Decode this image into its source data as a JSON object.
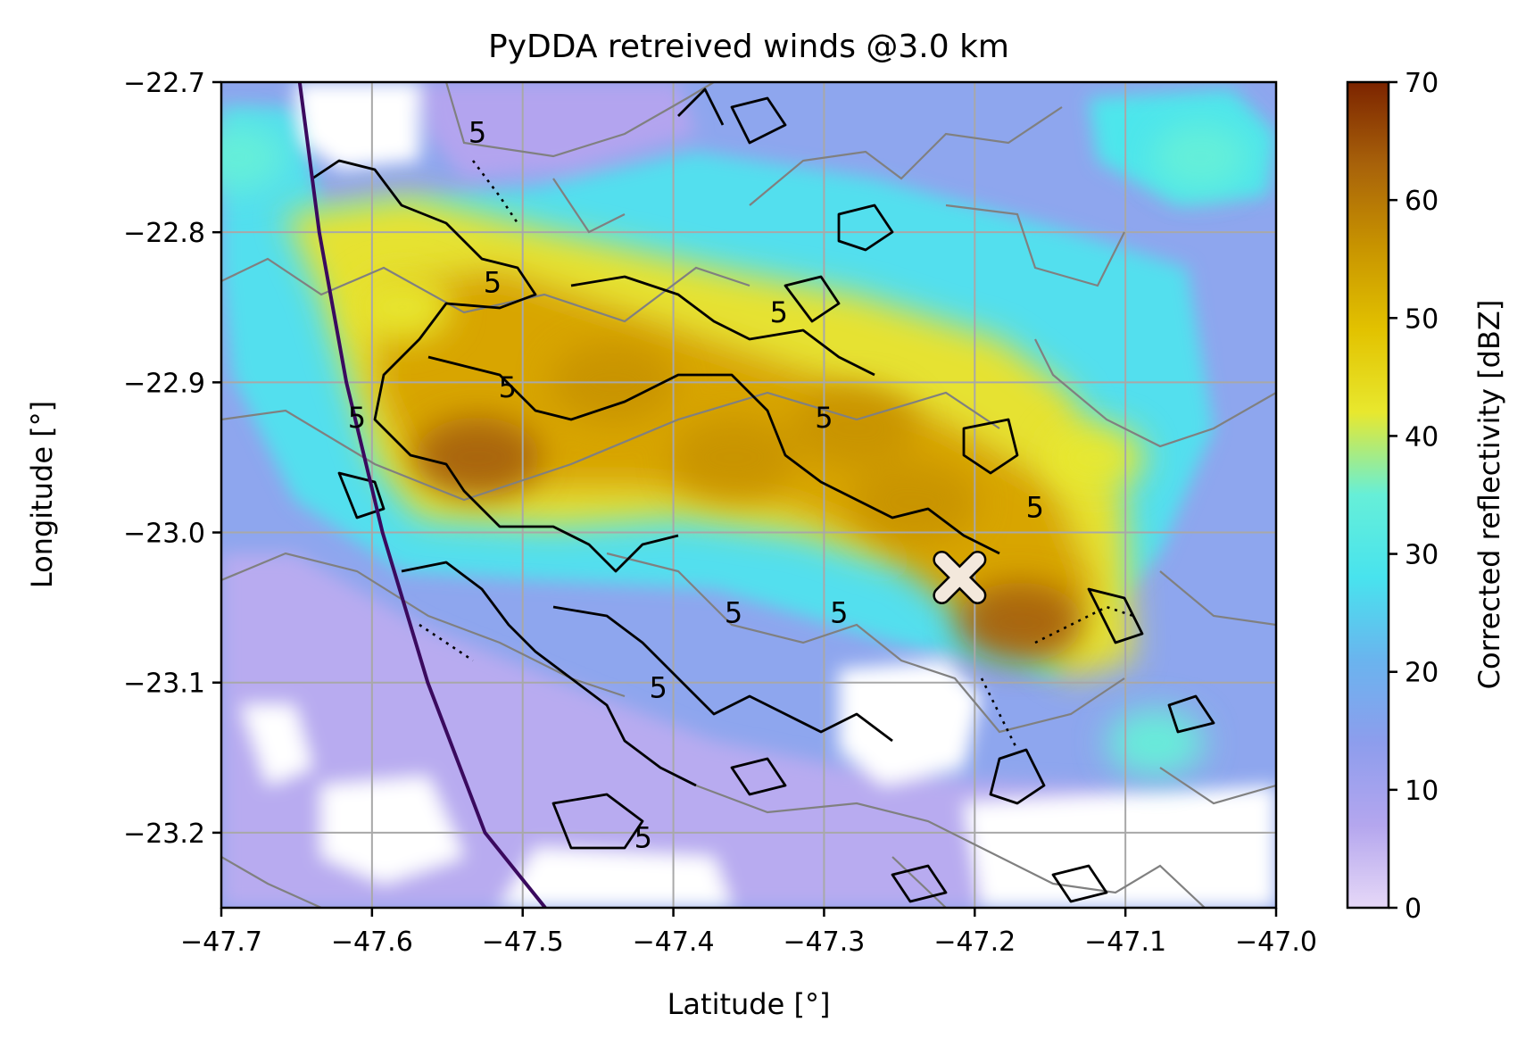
{
  "chart_data": {
    "type": "heatmap",
    "title": "PyDDA retreived winds @3.0 km",
    "xlabel": "Latitude [°]",
    "ylabel": "Longitude [°]",
    "xlim": [
      -47.7,
      -47.0
    ],
    "ylim": [
      -23.25,
      -22.7
    ],
    "xticks": [
      -47.7,
      -47.6,
      -47.5,
      -47.4,
      -47.3,
      -47.2,
      -47.1,
      -47.0
    ],
    "xtick_labels": [
      "−47.7",
      "−47.6",
      "−47.5",
      "−47.4",
      "−47.3",
      "−47.2",
      "−47.1",
      "−47.0"
    ],
    "yticks": [
      -22.7,
      -22.8,
      -22.9,
      -23.0,
      -23.1,
      -23.2
    ],
    "ytick_labels": [
      "−22.7",
      "−22.8",
      "−22.9",
      "−23.0",
      "−23.1",
      "−23.2"
    ],
    "grid": true,
    "colorbar": {
      "label": "Corrected reflectivity [dBZ]",
      "range": [
        0,
        70
      ],
      "ticks": [
        0,
        10,
        20,
        30,
        40,
        50,
        60,
        70
      ],
      "tick_labels": [
        "0",
        "10",
        "20",
        "30",
        "40",
        "50",
        "60",
        "70"
      ],
      "colors": [
        "#e6d8f7",
        "#b4a6ee",
        "#8d9ded",
        "#6ab4ee",
        "#48e3ee",
        "#66efd8",
        "#e8e82e",
        "#e2c200",
        "#c89400",
        "#a8620a",
        "#7c2400"
      ]
    },
    "reflectivity_cells": [
      {
        "lon": -47.28,
        "lat": -22.93,
        "dbz": 58
      },
      {
        "lon": -47.36,
        "lat": -22.95,
        "dbz": 55
      },
      {
        "lon": -47.44,
        "lat": -22.9,
        "dbz": 54
      },
      {
        "lon": -47.53,
        "lat": -22.95,
        "dbz": 60
      },
      {
        "lon": -47.17,
        "lat": -23.06,
        "dbz": 62
      },
      {
        "lon": -47.24,
        "lat": -22.98,
        "dbz": 54
      },
      {
        "lon": -47.58,
        "lat": -22.85,
        "dbz": 42
      },
      {
        "lon": -47.12,
        "lat": -22.95,
        "dbz": 44
      },
      {
        "lon": -47.08,
        "lat": -23.14,
        "dbz": 36
      },
      {
        "lon": -47.69,
        "lat": -22.75,
        "dbz": 34
      },
      {
        "lon": -47.05,
        "lat": -22.75,
        "dbz": 34
      }
    ],
    "contour_label": "5",
    "contour_label_positions": [
      {
        "lon": -47.53,
        "lat": -22.74
      },
      {
        "lon": -47.52,
        "lat": -22.84
      },
      {
        "lon": -47.33,
        "lat": -22.86
      },
      {
        "lon": -47.51,
        "lat": -22.91
      },
      {
        "lon": -47.61,
        "lat": -22.93
      },
      {
        "lon": -47.3,
        "lat": -22.93
      },
      {
        "lon": -47.16,
        "lat": -22.99
      },
      {
        "lon": -47.36,
        "lat": -23.06
      },
      {
        "lon": -47.29,
        "lat": -23.06
      },
      {
        "lon": -47.41,
        "lat": -23.11
      },
      {
        "lon": -47.42,
        "lat": -23.21
      }
    ],
    "radar_marker": {
      "symbol": "X",
      "lon": -47.21,
      "lat": -23.03,
      "color": "#f3e8dc"
    },
    "range_ring_color": "#3a0a5e",
    "range_ring": [
      {
        "lon": -47.648,
        "lat": -22.7
      },
      {
        "lon": -47.635,
        "lat": -22.8
      },
      {
        "lon": -47.617,
        "lat": -22.9
      },
      {
        "lon": -47.593,
        "lat": -23.0
      },
      {
        "lon": -47.563,
        "lat": -23.1
      },
      {
        "lon": -47.525,
        "lat": -23.2
      },
      {
        "lon": -47.485,
        "lat": -23.25
      }
    ]
  }
}
